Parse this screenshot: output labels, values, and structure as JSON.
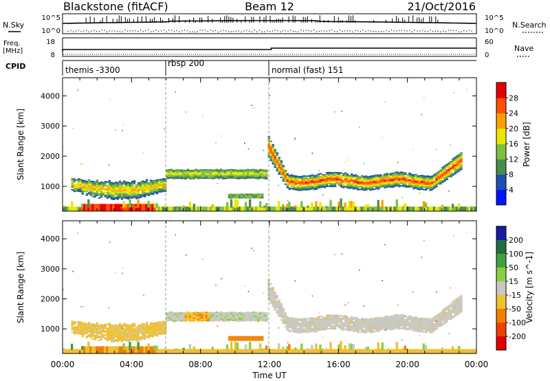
{
  "chart_data": {
    "type": "heatmap",
    "header": {
      "station": "Blackstone (fitACF)",
      "beam": "Beam 12",
      "date": "21/Oct/2016"
    },
    "left_labels": {
      "nsky": "N.Sky",
      "nsky_top": "10^5",
      "nsky_bottom": "10^0",
      "freq": "Freq.",
      "freq_unit": "[MHz]",
      "freq_top": "18",
      "freq_bottom": "8",
      "cpid": "CPID"
    },
    "right_labels": {
      "nsearch": "N.Search",
      "nsearch_top": "10^5",
      "nsearch_bottom": "10^0",
      "nave": "Nave",
      "nave_top": "60",
      "nave_bottom": "0"
    },
    "cpid_segments": [
      {
        "label": "themis -3300",
        "start_h": 0,
        "end_h": 6
      },
      {
        "label": "rbsp 200",
        "start_h": 6,
        "end_h": 12
      },
      {
        "label": "normal (fast) 151",
        "start_h": 12,
        "end_h": 24
      }
    ],
    "xlabel": "Time UT",
    "xticks": [
      "00:00",
      "04:00",
      "08:00",
      "12:00",
      "16:00",
      "20:00",
      "00:00"
    ],
    "xrange_hours": [
      0,
      24
    ],
    "ylabel": "Slant Range [km]",
    "yticks": [
      1000,
      2000,
      3000,
      4000
    ],
    "yrange_km": [
      180,
      4600
    ],
    "power": {
      "colorbar_label": "Power [dB]",
      "ticks": [
        "4",
        "8",
        "12",
        "16",
        "20",
        "24",
        "28"
      ],
      "colors": [
        "#0014ff",
        "#1f4fb4",
        "#4a8c4a",
        "#7fbf3f",
        "#e8e800",
        "#ffa000",
        "#ff5000",
        "#e80000"
      ]
    },
    "velocity": {
      "colorbar_label": "Velocity [m s^-1]",
      "ticks": [
        "200",
        "100",
        "50",
        "15",
        "-15",
        "-50",
        "-100",
        "-200"
      ],
      "colors": [
        "#1a1aa0",
        "#1f6f3f",
        "#3fa03f",
        "#88d040",
        "#c8c8c0",
        "#f0c030",
        "#f08000",
        "#f04000",
        "#e00000"
      ]
    },
    "features": [
      {
        "name": "morning echo band",
        "hours": [
          0.5,
          6
        ],
        "range_km": [
          700,
          1300
        ],
        "power_db": 16,
        "velocity": -30
      },
      {
        "name": "rbsp band",
        "hours": [
          6,
          11.8
        ],
        "range_km": [
          1250,
          1550
        ],
        "power_db": 14,
        "velocity": -20
      },
      {
        "name": "post-midday band",
        "hours": [
          12,
          23.1
        ],
        "range_km": [
          900,
          2700
        ],
        "power_db": 26,
        "velocity": -10
      },
      {
        "name": "near-range ground scatter",
        "hours": [
          0,
          24
        ],
        "range_km": [
          180,
          450
        ],
        "power_db": 22,
        "velocity": -40
      }
    ]
  }
}
